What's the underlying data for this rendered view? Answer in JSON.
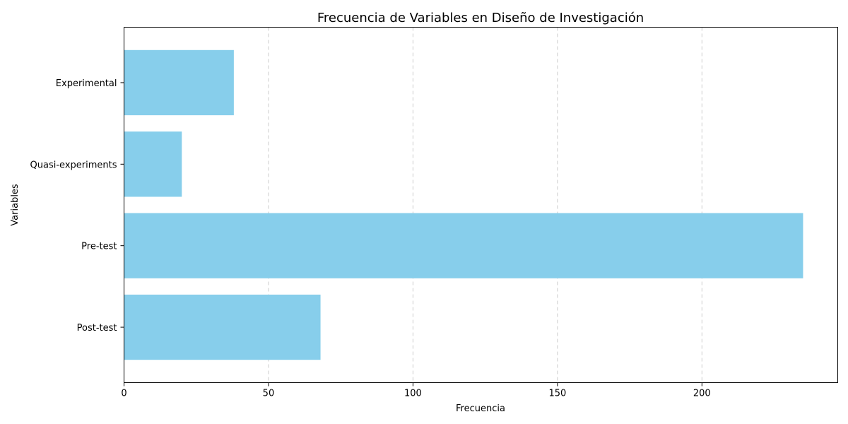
{
  "chart_data": {
    "type": "bar",
    "orientation": "horizontal",
    "title": "Frecuencia de Variables en Diseño de Investigación",
    "xlabel": "Frecuencia",
    "ylabel": "Variables",
    "categories": [
      "Experimental",
      "Quasi-experiments",
      "Pre-test",
      "Post-test"
    ],
    "values": [
      38,
      20,
      235,
      68
    ],
    "xlim": [
      0,
      247
    ],
    "xticks": [
      0,
      50,
      100,
      150,
      200
    ],
    "grid": "x-dashed",
    "bar_color": "#87CEEB"
  }
}
